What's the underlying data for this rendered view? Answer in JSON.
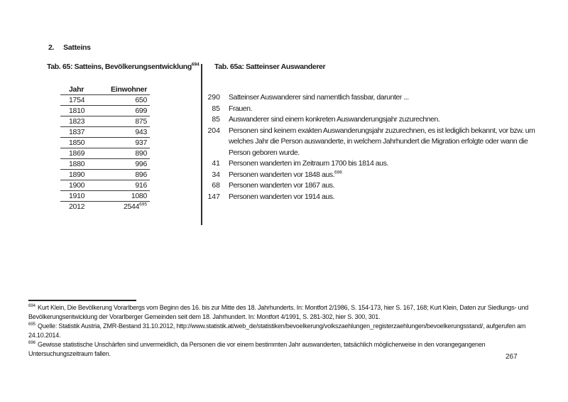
{
  "page": {
    "number": "267"
  },
  "heading": {
    "number": "2.",
    "title": "Satteins"
  },
  "left_table": {
    "caption": "Tab. 65: Satteins, Bevölkerungsentwicklung",
    "caption_footnote": "694",
    "columns": [
      "Jahr",
      "Einwohner"
    ],
    "rows": [
      {
        "jahr": "1754",
        "einwohner": "650"
      },
      {
        "jahr": "1810",
        "einwohner": "699"
      },
      {
        "jahr": "1823",
        "einwohner": "875"
      },
      {
        "jahr": "1837",
        "einwohner": "943"
      },
      {
        "jahr": "1850",
        "einwohner": "937"
      },
      {
        "jahr": "1869",
        "einwohner": "890"
      },
      {
        "jahr": "1880",
        "einwohner": "996"
      },
      {
        "jahr": "1890",
        "einwohner": "896"
      },
      {
        "jahr": "1900",
        "einwohner": "916"
      },
      {
        "jahr": "1910",
        "einwohner": "1080"
      },
      {
        "jahr": "2012",
        "einwohner": "2544",
        "einwohner_footnote": "695"
      }
    ]
  },
  "right_list": {
    "caption": "Tab. 65a: Satteinser Auswanderer",
    "items": [
      {
        "count": "290",
        "text": "Satteinser Auswanderer sind namentlich fassbar, darunter ..."
      },
      {
        "count": "85",
        "text": "Frauen."
      },
      {
        "count": "85",
        "text": "Auswanderer sind einem konkreten Auswanderungsjahr zuzurechnen."
      },
      {
        "count": "204",
        "text": "Personen sind keinem exakten Auswanderungsjahr zuzurechnen, es ist lediglich bekannt, vor bzw. um welches Jahr die Person auswanderte, in welchem Jahrhundert die Migration erfolgte oder wann die Person geboren wurde."
      },
      {
        "count": "41",
        "text": "Personen wanderten im Zeitraum 1700 bis 1814 aus."
      },
      {
        "count": "34",
        "text": "Personen wanderten vor 1848 aus.",
        "footnote": "696"
      },
      {
        "count": "68",
        "text": "Personen wanderten vor 1867 aus."
      },
      {
        "count": "147",
        "text": "Personen wanderten vor 1914 aus."
      }
    ]
  },
  "footnotes": [
    {
      "marker": "694",
      "text": "Kurt Klein, Die Bevölkerung Vorarlbergs vom Beginn des 16. bis zur Mitte des 18. Jahrhunderts. In: Montfort 2/1986, S. 154-173, hier S. 167, 168; Kurt Klein, Daten zur Siedlungs- und Bevölkerungsentwicklung der Vorarlberger Gemeinden seit dem 18. Jahrhundert. In: Montfort 4/1991, S. 281-302, hier S. 300, 301."
    },
    {
      "marker": "695",
      "text": "Quelle: Statistik Austria, ZMR-Bestand 31.10.2012, http://www.statistik.at/web_de/statistiken/bevoelkerung/volkszaehlungen_registerzaehlungen/bevoelkerungsstand/, aufgerufen am 24.10.2014."
    },
    {
      "marker": "696",
      "text": "Gewisse statistische Unschärfen sind unvermeidlich, da Personen die vor einem bestimmten Jahr auswanderten, tatsächlich möglicherweise in den vorangegangenen Untersuchungszeitraum fallen."
    }
  ]
}
